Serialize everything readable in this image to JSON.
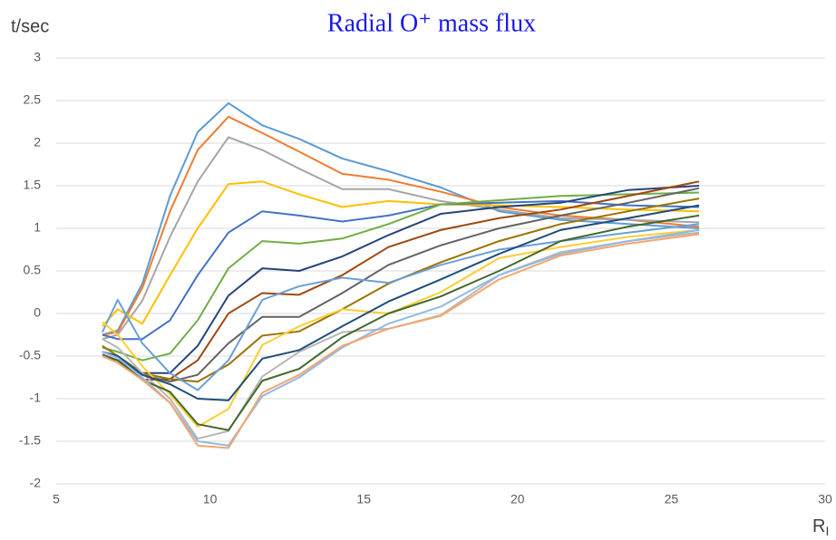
{
  "chart_data": {
    "type": "line",
    "title": "Radial O⁺ mass flux",
    "y_label": "t/sec",
    "x_label": {
      "main": "R",
      "sub": "I"
    },
    "xlim": [
      5,
      30
    ],
    "xticks": [
      5,
      10,
      15,
      20,
      25,
      30
    ],
    "ylim": [
      -2,
      3
    ],
    "yticks": [
      -2,
      -1.5,
      -1,
      -0.5,
      0,
      0.5,
      1,
      1.5,
      2,
      2.5,
      3
    ],
    "grid": true,
    "x": [
      6.5,
      7,
      7.8,
      8.7,
      9.6,
      10.6,
      11.7,
      12.9,
      14.3,
      15.8,
      17.5,
      19.4,
      21.4,
      23.6,
      25.9
    ],
    "series": [
      {
        "color": "#5b9bd5",
        "values": [
          -0.25,
          -0.2,
          0.35,
          1.38,
          2.13,
          2.47,
          2.21,
          2.05,
          1.82,
          1.67,
          1.48,
          1.2,
          1.1,
          1.05,
          1.0
        ]
      },
      {
        "color": "#ed7d31",
        "values": [
          -0.25,
          -0.22,
          0.3,
          1.2,
          1.92,
          2.31,
          2.12,
          1.9,
          1.64,
          1.57,
          1.43,
          1.25,
          1.15,
          1.1,
          1.02
        ]
      },
      {
        "color": "#a5a5a5",
        "values": [
          -0.3,
          -0.25,
          0.15,
          0.9,
          1.55,
          2.07,
          1.92,
          1.7,
          1.46,
          1.46,
          1.32,
          1.22,
          1.12,
          1.1,
          1.07
        ]
      },
      {
        "color": "#ffc000",
        "values": [
          -0.15,
          0.05,
          -0.12,
          0.45,
          1.0,
          1.52,
          1.55,
          1.4,
          1.25,
          1.32,
          1.28,
          1.27,
          1.25,
          1.22,
          1.2
        ]
      },
      {
        "color": "#4472c4",
        "values": [
          -0.25,
          -0.3,
          -0.3,
          -0.08,
          0.45,
          0.95,
          1.2,
          1.15,
          1.08,
          1.15,
          1.28,
          1.3,
          1.32,
          1.27,
          1.25
        ]
      },
      {
        "color": "#70ad47",
        "values": [
          -0.4,
          -0.45,
          -0.55,
          -0.47,
          -0.08,
          0.53,
          0.85,
          0.82,
          0.88,
          1.05,
          1.28,
          1.33,
          1.38,
          1.4,
          1.42
        ]
      },
      {
        "color": "#264478",
        "values": [
          -0.45,
          -0.5,
          -0.7,
          -0.7,
          -0.38,
          0.21,
          0.53,
          0.5,
          0.67,
          0.92,
          1.17,
          1.25,
          1.3,
          1.45,
          1.5
        ]
      },
      {
        "color": "#9e480e",
        "values": [
          -0.5,
          -0.55,
          -0.78,
          -0.77,
          -0.55,
          0.0,
          0.24,
          0.22,
          0.45,
          0.78,
          0.98,
          1.12,
          1.22,
          1.38,
          1.55
        ]
      },
      {
        "color": "#636363",
        "values": [
          -0.48,
          -0.55,
          -0.72,
          -0.8,
          -0.72,
          -0.35,
          -0.04,
          -0.04,
          0.24,
          0.57,
          0.8,
          1.0,
          1.15,
          1.3,
          1.47
        ]
      },
      {
        "color": "#997300",
        "values": [
          -0.38,
          -0.5,
          -0.7,
          -0.77,
          -0.8,
          -0.6,
          -0.26,
          -0.21,
          0.05,
          0.35,
          0.6,
          0.85,
          1.05,
          1.2,
          1.35
        ]
      },
      {
        "color": "#6a9fd6",
        "values": [
          -0.22,
          0.16,
          -0.35,
          -0.7,
          -0.9,
          -0.55,
          0.16,
          0.32,
          0.42,
          0.36,
          0.57,
          0.75,
          0.85,
          0.95,
          1.05
        ]
      },
      {
        "color": "#ffcd33",
        "values": [
          -0.1,
          -0.25,
          -0.62,
          -0.95,
          -1.33,
          -1.12,
          -0.37,
          -0.15,
          0.05,
          0.0,
          0.25,
          0.65,
          0.78,
          0.9,
          0.98
        ]
      },
      {
        "color": "#b7b7b7",
        "values": [
          -0.3,
          -0.4,
          -0.7,
          -1.0,
          -1.47,
          -1.38,
          -0.74,
          -0.45,
          -0.22,
          -0.18,
          -0.02,
          0.45,
          0.72,
          0.85,
          0.95
        ]
      },
      {
        "color": "#1f4e79",
        "values": [
          -0.45,
          -0.5,
          -0.72,
          -0.83,
          -1.0,
          -1.02,
          -0.53,
          -0.43,
          -0.15,
          0.14,
          0.4,
          0.7,
          0.98,
          1.12,
          1.27
        ]
      },
      {
        "color": "#43682b",
        "values": [
          -0.5,
          -0.55,
          -0.78,
          -0.92,
          -1.3,
          -1.37,
          -0.79,
          -0.65,
          -0.28,
          0.0,
          0.2,
          0.5,
          0.85,
          1.02,
          1.15
        ]
      },
      {
        "color": "#8fb9e3",
        "values": [
          -0.45,
          -0.52,
          -0.75,
          -1.05,
          -1.5,
          -1.55,
          -0.97,
          -0.75,
          -0.4,
          -0.12,
          0.08,
          0.45,
          0.7,
          0.85,
          0.98
        ]
      },
      {
        "color": "#f4a66f",
        "values": [
          -0.5,
          -0.58,
          -0.78,
          -1.05,
          -1.55,
          -1.58,
          -0.93,
          -0.72,
          -0.38,
          -0.18,
          -0.03,
          0.4,
          0.68,
          0.82,
          0.93
        ]
      }
    ]
  }
}
